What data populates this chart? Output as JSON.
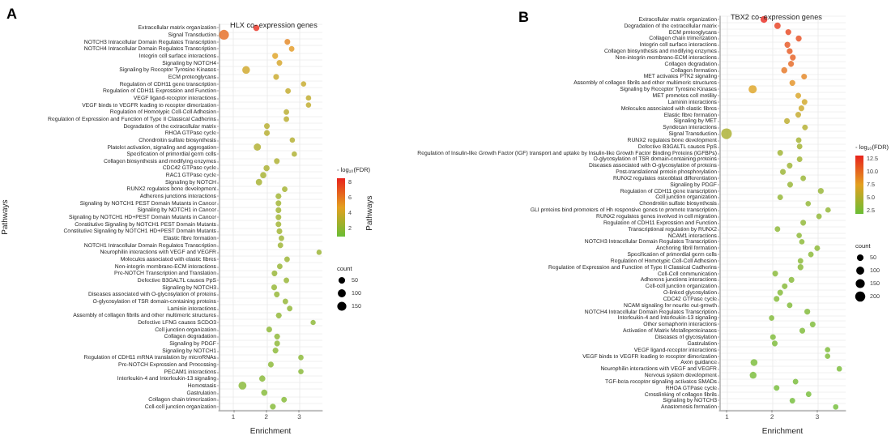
{
  "chart_data": [
    {
      "type": "bubble",
      "orientation": "horizontal",
      "title": "HLX co- expression genes",
      "xlabel": "Enrichment",
      "ylabel": "Pathways",
      "clabel": "- log₁₀(FDR)",
      "annotations": [
        "A"
      ],
      "grid": true,
      "categories": [
        "Extracellular matrix organization",
        "Signal Transduction",
        "NOTCH3 Intracellular Domain Regulates Transcription",
        "NOTCH4 Intracellular Domain Regulates Transcription",
        "Integrin cell surface interactions",
        "Signaling by NOTCH4",
        "Signaling by Receptor Tyrosine Kinases",
        "ECM proteoglycans",
        "Regulation of CDH11 gene transcription",
        "Regulation of CDH11 Expression and Function",
        "VEGF ligand-receptor interactions",
        "VEGF binds to VEGFR leading to receptor dimerization",
        "Regulation of Homotypic Cell-Cell Adhesion",
        "Regulation of Expression and Function of Type II Classical Cadherins",
        "Degradation of the extracellular matrix",
        "RHOA GTPase cycle",
        "Chondroitin sulfate biosynthesis",
        "Platelet activation, signaling and aggregation",
        "Specification of primordial germ cells",
        "Collagen biosynthesis and modifying enzymes",
        "CDC42 GTPase cycle",
        "RAC1 GTPase cycle",
        "Signaling by NOTCH",
        "RUNX2 regulates bone development",
        "Adherens junctions interactions",
        "Signaling by NOTCH1 PEST Domain Mutants in Cancer",
        "Signaling by NOTCH1 in Cancer",
        "Signaling by NOTCH1 HD+PEST Domain Mutants in Cancer",
        "Constitutive Signaling by NOTCH1 PEST Domain Mutants",
        "Constitutive Signaling by NOTCH1 HD+PEST Domain Mutants",
        "Elastic fibre formation",
        "NOTCH1 Intracellular Domain Regulates Transcription",
        "Neurophilin interactions with VEGF and VEGFR",
        "Molecules associated with elastic fibres",
        "Non-integrin membrane-ECM interactions",
        "Pre-NOTCH Transcription and Translation",
        "Defective B3GALTL causes PpS",
        "Signaling by NOTCH3",
        "Diseases associated with O-glycosylation of proteins",
        "O-glycosylation of TSR domain-containing proteins",
        "Laminin interactions",
        "Assembly of collagen fibrils and other multimeric structures",
        "Defective LFNG causes SCDO3",
        "Cell junction organization",
        "Collagen degradation",
        "Signaling by PDGF",
        "Signaling by NOTCH1",
        "Regulation of CDH11 mRNA translation by microRNAs",
        "Pre-NOTCH Expression and Processing",
        "PECAM1 interactions",
        "Interleukin-4 and Interleukin-13 signaling",
        "Hemostasis",
        "Gastrulation",
        "Collagen chain trimerization",
        "Cell-cell junction organization"
      ],
      "values": [
        1.7,
        0.72,
        2.64,
        2.77,
        2.27,
        2.4,
        1.39,
        2.3,
        3.13,
        2.66,
        3.28,
        3.28,
        2.61,
        2.61,
        2.02,
        2.02,
        2.79,
        1.73,
        2.85,
        2.32,
        2.01,
        1.91,
        1.78,
        2.56,
        2.37,
        2.37,
        2.37,
        2.37,
        2.37,
        2.4,
        2.46,
        2.43,
        3.6,
        2.63,
        2.41,
        2.25,
        2.61,
        2.24,
        2.32,
        2.58,
        2.71,
        2.38,
        3.42,
        2.09,
        2.33,
        2.33,
        2.28,
        3.05,
        2.14,
        3.05,
        1.88,
        1.28,
        1.94,
        2.54,
        2.2
      ],
      "cvalues": [
        8.3,
        6.4,
        5.6,
        5.0,
        4.6,
        4.3,
        4.1,
        3.9,
        3.8,
        3.7,
        3.6,
        3.6,
        3.4,
        3.4,
        3.3,
        3.3,
        3.2,
        3.1,
        3.0,
        3.0,
        2.9,
        2.8,
        2.8,
        2.7,
        2.6,
        2.6,
        2.6,
        2.6,
        2.6,
        2.6,
        2.5,
        2.5,
        2.4,
        2.4,
        2.3,
        2.3,
        2.3,
        2.2,
        2.2,
        2.2,
        2.1,
        2.1,
        2.0,
        2.0,
        2.0,
        2.0,
        1.9,
        1.9,
        1.9,
        1.8,
        1.8,
        1.8,
        1.7,
        1.7,
        1.7
      ],
      "sizes": [
        40,
        190,
        25,
        20,
        30,
        25,
        90,
        25,
        15,
        20,
        15,
        15,
        20,
        20,
        25,
        25,
        15,
        70,
        15,
        25,
        35,
        40,
        45,
        20,
        25,
        25,
        25,
        25,
        25,
        25,
        20,
        20,
        10,
        20,
        20,
        25,
        20,
        25,
        25,
        20,
        20,
        25,
        10,
        25,
        25,
        25,
        25,
        15,
        25,
        15,
        40,
        100,
        40,
        20,
        30
      ],
      "size_legend": [
        50,
        100,
        150
      ],
      "legend_title": "count",
      "xlim": [
        0.56,
        3.7
      ],
      "xticks": [
        1,
        2,
        3
      ],
      "clim": [
        1,
        8.5
      ],
      "cticks": [
        2,
        4,
        6,
        8
      ]
    },
    {
      "type": "bubble",
      "orientation": "horizontal",
      "title": "TBX2 co- expression genes",
      "xlabel": "Enrichment",
      "ylabel": "Pathways",
      "clabel": "- log₁₀(FDR)",
      "annotations": [
        "B"
      ],
      "grid": true,
      "categories": [
        "Extracellular matrix organization",
        "Degradation of the extracellular matrix",
        "ECM proteoglycans",
        "Collagen chain trimerization",
        "Integrin cell surface interactions",
        "Collagen biosynthesis and modifying enzymes",
        "Non-integrin membrane-ECM interactions",
        "Collagen degradation",
        "Collagen formation",
        "MET activates PTK2 signaling",
        "Assembly of collagen fibrils and other multimeric structures",
        "Signaling by Receptor Tyrosine Kinases",
        "MET promotes cell motility",
        "Laminin interactions",
        "Molecules associated with elastic fibres",
        "Elastic fibre formation",
        "Signaling by MET",
        "Syndecan interactions",
        "Signal Transduction",
        "RUNX2 regulates bone development",
        "Defective B3GALTL causes PpS",
        "Regulation of Insulin-like Growth Factor (IGF) transport and uptake by Insulin-like Growth Factor Binding Proteins (IGFBPs)",
        "O-glycosylation of TSR domain-containing proteins",
        "Diseases associated with O-glycosylation of proteins",
        "Post-translational protein phosphorylation",
        "RUNX2 regulates osteoblast differentiation",
        "Signaling by PDGF",
        "Regulation of CDH11 gene transcription",
        "Cell junction organization",
        "Chondroitin sulfate biosynthesis",
        "GLI proteins bind promoters of Hh responsive genes to promote transcription",
        "RUNX2 regulates genes involved in cell migration",
        "Regulation of CDH11 Expression and Function",
        "Transcriptional regulation by RUNX2",
        "NCAM1 interactions",
        "NOTCH3 Intracellular Domain Regulates Transcription",
        "Anchoring fibril formation",
        "Specification of primordial germ cells",
        "Regulation of Homotypic Cell-Cell Adhesion",
        "Regulation of Expression and Function of Type II Classical Cadherins",
        "Cell-Cell communication",
        "Adherens junctions interactions",
        "Cell-cell junction organization",
        "O-linked glycosylation",
        "CDC42 GTPase cycle",
        "NCAM signaling for neurite out-growth",
        "NOTCH4 Intracellular Domain Regulates Transcription",
        "Interleukin-4 and Interleukin-13 signaling",
        "Other semaphorin interactions",
        "Activation of Matrix Metalloproteinases",
        "Diseases of glycosylation",
        "Gastrulation",
        "VEGF ligand-receptor interactions",
        "VEGF binds to VEGFR leading to receptor dimerization",
        "Axon guidance",
        "Neurophilin interactions with VEGF and VEGFR",
        "Nervous system development",
        "TGF-beta receptor signaling activates SMADs",
        "RHOA GTPase cycle",
        "Crosslinking of collagen fibrils",
        "Signaling by NOTCH3",
        "Anastomosis formation"
      ],
      "values": [
        1.82,
        2.12,
        2.36,
        2.59,
        2.34,
        2.39,
        2.46,
        2.42,
        2.27,
        2.71,
        2.45,
        1.57,
        2.58,
        2.72,
        2.65,
        2.58,
        2.33,
        2.73,
        0.99,
        2.59,
        2.61,
        2.18,
        2.61,
        2.39,
        2.24,
        2.69,
        2.4,
        3.08,
        2.18,
        2.8,
        3.24,
        3.04,
        2.69,
        2.12,
        2.6,
        2.66,
        3.0,
        2.86,
        2.63,
        2.63,
        2.07,
        2.43,
        2.28,
        2.18,
        2.1,
        2.39,
        2.78,
        1.99,
        2.9,
        2.67,
        2.02,
        2.06,
        3.23,
        3.23,
        1.6,
        3.49,
        1.58,
        2.52,
        2.1,
        2.81,
        2.45,
        3.41
      ],
      "cvalues": [
        13.0,
        12.0,
        11.6,
        11.3,
        11.0,
        10.8,
        10.5,
        10.2,
        9.5,
        8.8,
        8.2,
        7.2,
        7.0,
        6.6,
        6.3,
        6.0,
        5.6,
        5.2,
        4.8,
        4.5,
        4.4,
        4.3,
        4.2,
        4.1,
        4.0,
        3.9,
        3.8,
        3.8,
        3.7,
        3.6,
        3.6,
        3.5,
        3.5,
        3.4,
        3.4,
        3.3,
        3.3,
        3.2,
        3.2,
        3.1,
        3.1,
        3.0,
        3.0,
        2.9,
        2.9,
        2.8,
        2.8,
        2.8,
        2.7,
        2.7,
        2.7,
        2.6,
        2.6,
        2.6,
        2.5,
        2.5,
        2.4,
        2.4,
        2.3,
        2.3,
        2.2,
        2.2
      ],
      "sizes": [
        60,
        45,
        30,
        30,
        30,
        30,
        30,
        30,
        35,
        25,
        30,
        110,
        25,
        25,
        25,
        25,
        25,
        20,
        230,
        20,
        20,
        25,
        20,
        25,
        25,
        20,
        25,
        30,
        20,
        15,
        15,
        20,
        25,
        20,
        15,
        15,
        20,
        20,
        20,
        30,
        25,
        25,
        25,
        25,
        25,
        20,
        30,
        15,
        25,
        25,
        25,
        25,
        15,
        15,
        60,
        15,
        60,
        20,
        25,
        20,
        20,
        15
      ],
      "size_legend": [
        50,
        100,
        150,
        200
      ],
      "legend_title": "count",
      "xlim": [
        0.83,
        3.63
      ],
      "xticks": [
        1,
        2,
        3
      ],
      "clim": [
        1.9,
        13.1
      ],
      "cticks": [
        2.5,
        {
          "value": 5,
          "label": "5.0"
        },
        7.5,
        {
          "value": 10,
          "label": "10.0"
        },
        12.5
      ]
    }
  ]
}
